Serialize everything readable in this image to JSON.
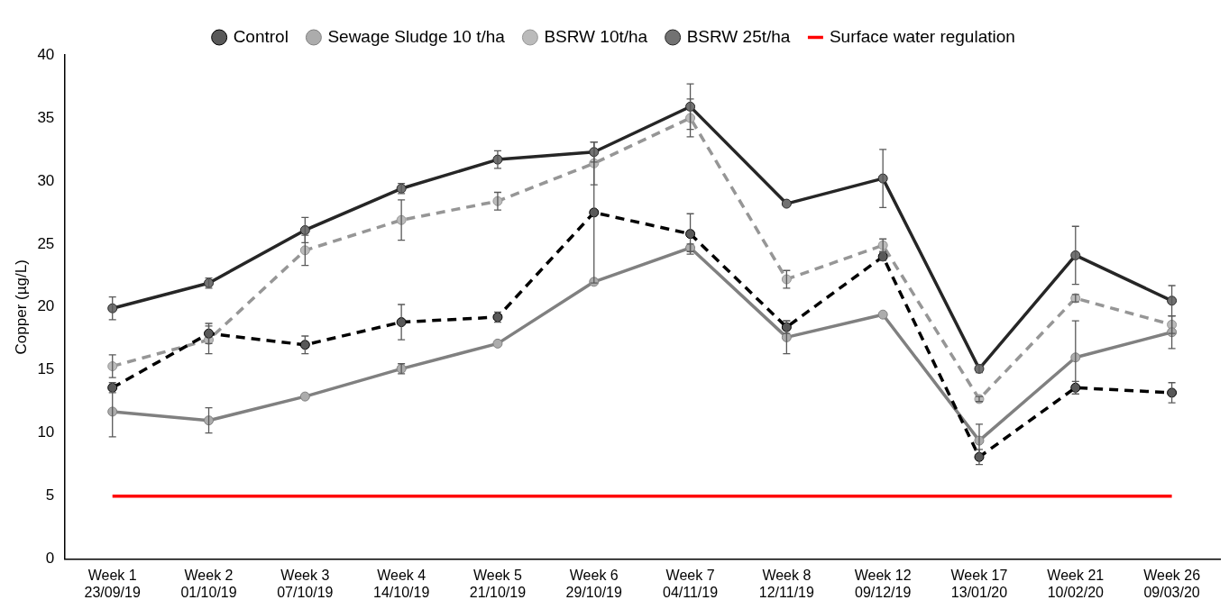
{
  "chart_data": {
    "type": "line",
    "ylabel": "Copper (µg/L)",
    "categories": [
      "Week 1\n23/09/19",
      "Week 2\n01/10/19",
      "Week 3\n07/10/19",
      "Week 4\n14/10/19",
      "Week 5\n21/10/19",
      "Week 6\n29/10/19",
      "Week 7\n04/11/19",
      "Week 8\n12/11/19",
      "Week 12\n09/12/19",
      "Week 17\n13/01/20",
      "Week 21\n10/02/20",
      "Week 26\n09/03/20"
    ],
    "series": [
      {
        "name": "Control",
        "color": "#000000",
        "line_style": "dashed",
        "marker": "circle",
        "values": [
          13.6,
          17.9,
          17.0,
          18.8,
          19.2,
          27.5,
          25.8,
          18.4,
          24.0,
          8.1,
          13.6,
          13.2
        ],
        "errors": [
          0.4,
          0.8,
          0.7,
          1.4,
          0.4,
          5.6,
          1.6,
          0.5,
          0.3,
          0.6,
          0.5,
          0.8
        ]
      },
      {
        "name": "Sewage Sludge 10 t/ha",
        "color": "#808080",
        "line_style": "solid",
        "marker": "circle",
        "values": [
          11.7,
          11.0,
          12.9,
          15.1,
          17.1,
          22.0,
          24.7,
          17.6,
          19.4,
          9.4,
          16.0,
          18.0
        ],
        "errors": [
          2.0,
          1.0,
          null,
          0.4,
          null,
          null,
          0.3,
          1.3,
          null,
          1.3,
          2.9,
          1.3
        ]
      },
      {
        "name": "BSRW 10t/ha",
        "color": "#969696",
        "line_style": "dashed",
        "marker": "circle",
        "values": [
          15.3,
          17.4,
          24.5,
          26.9,
          28.4,
          31.4,
          35.0,
          22.2,
          24.9,
          12.7,
          20.7,
          18.6
        ],
        "errors": [
          0.9,
          1.1,
          1.2,
          1.6,
          0.7,
          1.7,
          1.5,
          0.7,
          0.5,
          0.2,
          0.3,
          0.7
        ]
      },
      {
        "name": "BSRW 25t/ha",
        "color": "#262626",
        "line_style": "solid",
        "marker": "circle",
        "values": [
          19.9,
          21.9,
          26.1,
          29.4,
          31.7,
          32.3,
          35.9,
          28.2,
          30.2,
          15.1,
          24.1,
          20.5
        ],
        "errors": [
          0.9,
          0.4,
          1.0,
          0.4,
          0.7,
          0.8,
          1.8,
          null,
          2.3,
          0.3,
          2.3,
          1.2
        ]
      },
      {
        "name": "Surface water regulation",
        "color": "#ff0000",
        "line_style": "solid",
        "marker": "none",
        "values": [
          5,
          5,
          5,
          5,
          5,
          5,
          5,
          5,
          5,
          5,
          5,
          5
        ]
      }
    ],
    "ylim": [
      0,
      40
    ],
    "yticks": [
      0,
      5,
      10,
      15,
      20,
      25,
      30,
      35,
      40
    ],
    "grid": false,
    "legend": "top"
  }
}
